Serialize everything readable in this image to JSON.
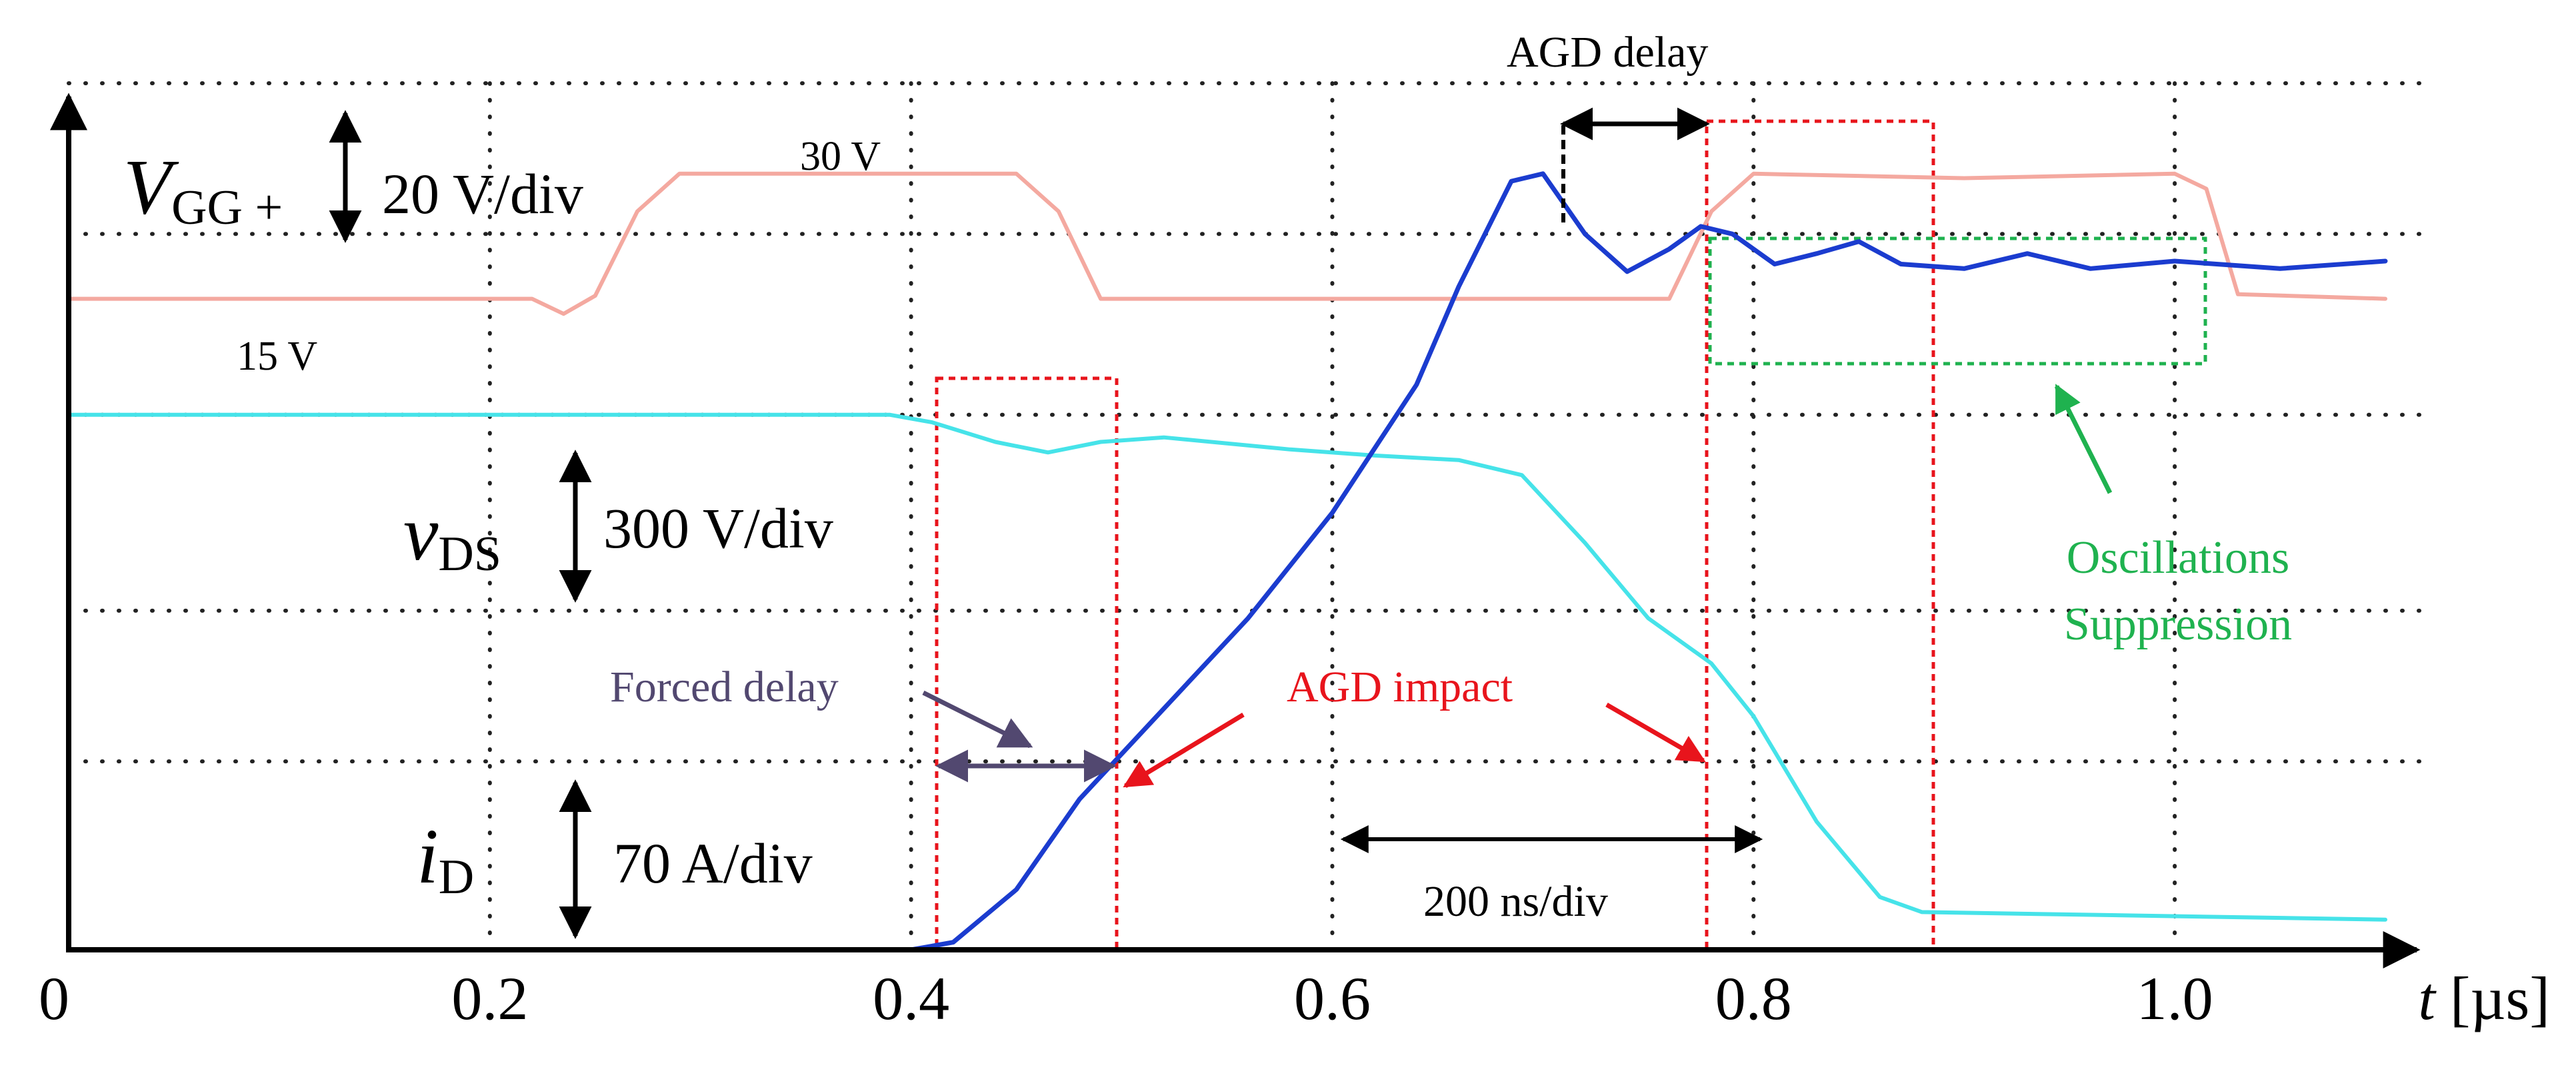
{
  "chart_data": {
    "type": "line",
    "title": "",
    "xlabel": {
      "var": "t",
      "unit": "[µs]"
    },
    "xlim": [
      0,
      1.1
    ],
    "x_ticks": [
      "0",
      "0.2",
      "0.4",
      "0.6",
      "0.8",
      "1.0"
    ],
    "x_tick_values": [
      0,
      0.2,
      0.4,
      0.6,
      0.8,
      1.0
    ],
    "divisions": {
      "x_step": 0.2,
      "y_range": [
        0,
        5.75
      ],
      "levels": [
        1.25,
        2.25,
        3.55,
        4.75,
        5.75
      ]
    },
    "series": [
      {
        "name": "V_GG+",
        "color": "#f4a9a0",
        "points": [
          [
            0,
            4.32
          ],
          [
            0.22,
            4.32
          ],
          [
            0.235,
            4.22
          ],
          [
            0.25,
            4.34
          ],
          [
            0.27,
            4.9
          ],
          [
            0.29,
            5.15
          ],
          [
            0.45,
            5.15
          ],
          [
            0.47,
            4.9
          ],
          [
            0.49,
            4.32
          ],
          [
            0.76,
            4.32
          ],
          [
            0.78,
            4.9
          ],
          [
            0.8,
            5.15
          ],
          [
            0.9,
            5.12
          ],
          [
            1.0,
            5.15
          ],
          [
            1.015,
            5.05
          ],
          [
            1.03,
            4.35
          ],
          [
            1.1,
            4.32
          ]
        ]
      },
      {
        "name": "v_DS",
        "color": "#46e3e9",
        "points": [
          [
            0,
            3.55
          ],
          [
            0.39,
            3.55
          ],
          [
            0.41,
            3.5
          ],
          [
            0.44,
            3.37
          ],
          [
            0.465,
            3.3
          ],
          [
            0.49,
            3.37
          ],
          [
            0.52,
            3.4
          ],
          [
            0.58,
            3.32
          ],
          [
            0.62,
            3.28
          ],
          [
            0.66,
            3.25
          ],
          [
            0.69,
            3.15
          ],
          [
            0.72,
            2.7
          ],
          [
            0.75,
            2.2
          ],
          [
            0.78,
            1.9
          ],
          [
            0.8,
            1.55
          ],
          [
            0.83,
            0.85
          ],
          [
            0.86,
            0.35
          ],
          [
            0.88,
            0.25
          ],
          [
            1.1,
            0.2
          ]
        ]
      },
      {
        "name": "i_D",
        "color": "#1b3ccf",
        "points": [
          [
            0.4,
            0
          ],
          [
            0.42,
            0.05
          ],
          [
            0.45,
            0.4
          ],
          [
            0.48,
            1.0
          ],
          [
            0.52,
            1.6
          ],
          [
            0.56,
            2.2
          ],
          [
            0.6,
            2.9
          ],
          [
            0.64,
            3.75
          ],
          [
            0.66,
            4.4
          ],
          [
            0.685,
            5.1
          ],
          [
            0.7,
            5.15
          ],
          [
            0.72,
            4.75
          ],
          [
            0.74,
            4.5
          ],
          [
            0.76,
            4.65
          ],
          [
            0.775,
            4.8
          ],
          [
            0.79,
            4.75
          ],
          [
            0.81,
            4.55
          ],
          [
            0.83,
            4.62
          ],
          [
            0.85,
            4.7
          ],
          [
            0.87,
            4.55
          ],
          [
            0.9,
            4.52
          ],
          [
            0.93,
            4.62
          ],
          [
            0.96,
            4.52
          ],
          [
            1.0,
            4.57
          ],
          [
            1.05,
            4.52
          ],
          [
            1.1,
            4.57
          ]
        ]
      }
    ],
    "channels": [
      {
        "symbol": "V",
        "sub": "GG +",
        "scale": "20 V/div"
      },
      {
        "symbol": "v",
        "sub": "DS",
        "scale": "300 V/div"
      },
      {
        "symbol": "i",
        "sub": "D",
        "scale": "70 A/div"
      }
    ],
    "annotations": {
      "vgg_high": "30 V",
      "vgg_low": "15 V",
      "agd_delay": "AGD delay",
      "forced_delay": "Forced delay",
      "agd_impact": "AGD impact",
      "time_div": "200 ns/div",
      "osc_line1": "Oscillations",
      "osc_line2": "Suppression"
    },
    "colors": {
      "grid": "#222222",
      "axes": "#000000",
      "red_box": "#e8141c",
      "green_box": "#1fb24f",
      "forced_delay": "#524870",
      "osc_text": "#1fb24f"
    }
  }
}
